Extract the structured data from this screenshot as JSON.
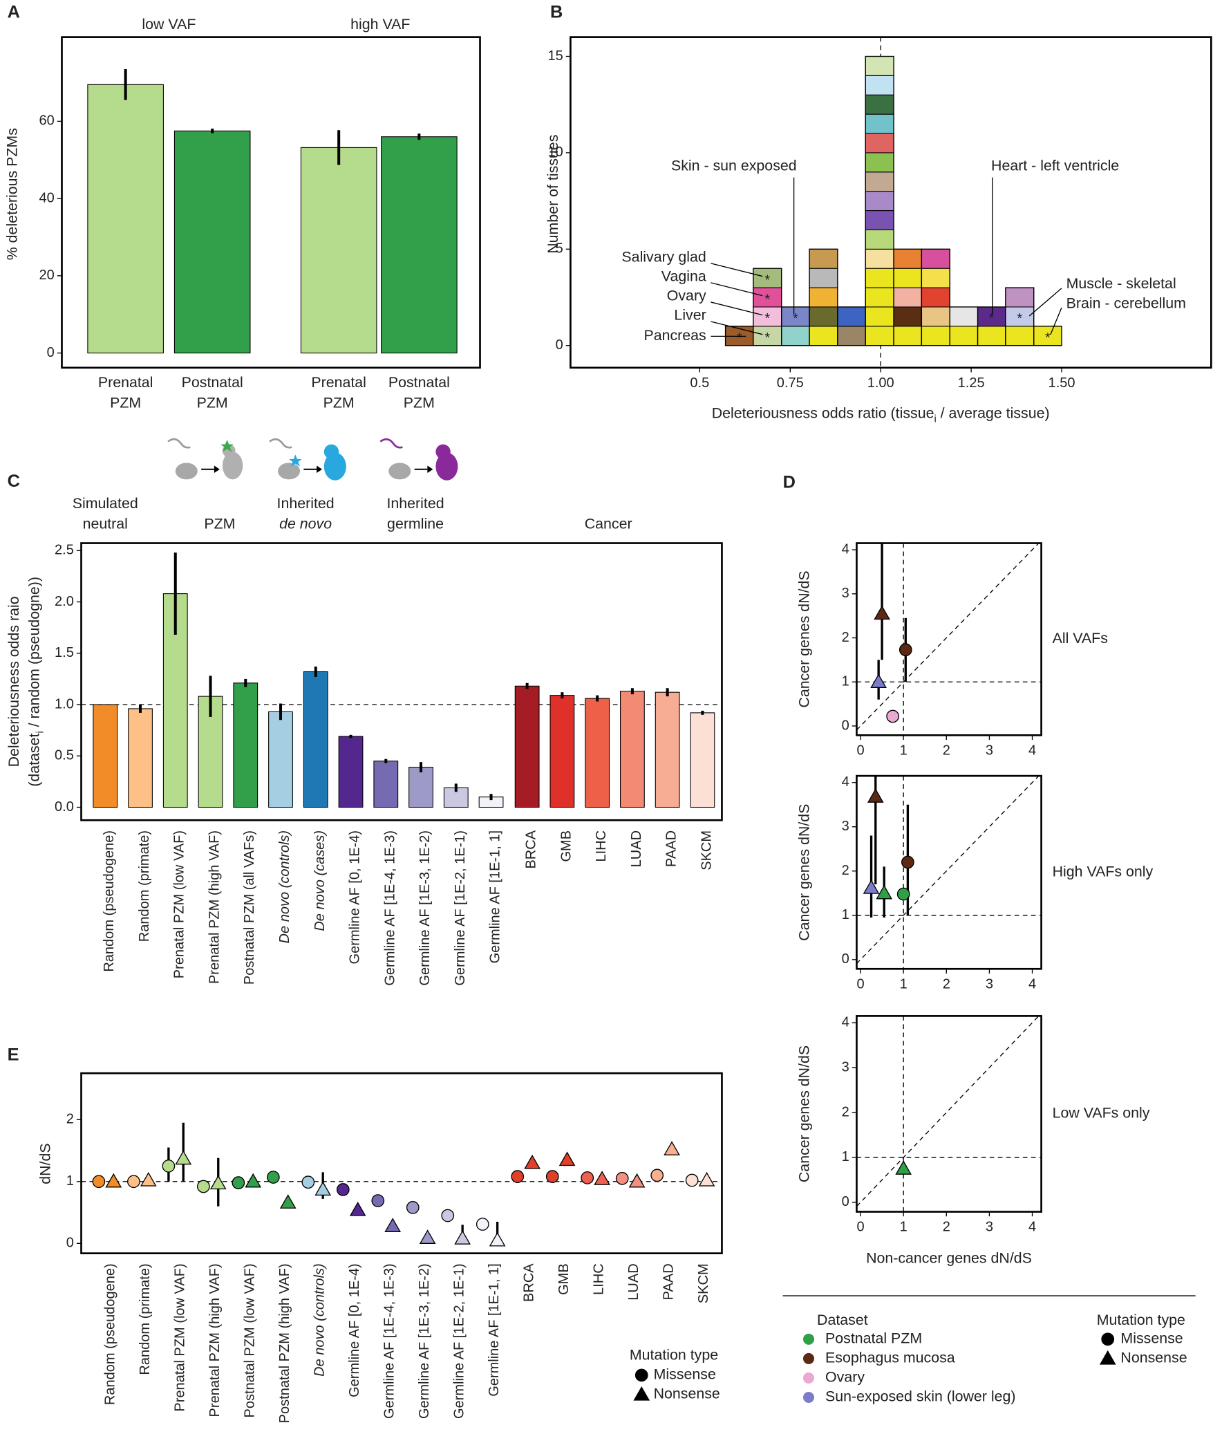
{
  "panel_labels": [
    "A",
    "B",
    "C",
    "D",
    "E"
  ],
  "chart_data": [
    {
      "type": "bar",
      "y_label": "% deleterious PZMs",
      "groups": [
        "low VAF",
        "high VAF"
      ],
      "categories": [
        [
          "Prenatal",
          "PZM"
        ],
        [
          "Postnatal",
          "PZM"
        ],
        [
          "Prenatal",
          "PZM"
        ],
        [
          "Postnatal",
          "PZM"
        ]
      ],
      "values": [
        69.5,
        57.5,
        53.2,
        56
      ],
      "errors": [
        4,
        0.6,
        4.5,
        0.8
      ],
      "colors": [
        "#b5dc8c",
        "#32a04a",
        "#b5dc8c",
        "#32a04a"
      ],
      "ylim": [
        -3.8,
        81.8
      ],
      "yticks": [
        0,
        20,
        40,
        60
      ]
    },
    {
      "type": "histogram",
      "y_label": "Number of tissues",
      "x_label": [
        "Deleteriousness odds ratio (tissue",
        "i",
        " / average tissue)"
      ],
      "bins": [
        0.571,
        0.648,
        0.726,
        0.803,
        0.881,
        0.958,
        1.036,
        1.113,
        1.191,
        1.268,
        1.345,
        1.423,
        1.5
      ],
      "counts": [
        1,
        4,
        2,
        5,
        2,
        15,
        5,
        5,
        2,
        2,
        3,
        1
      ],
      "cells": [
        [
          {
            "color": "#9b5b2a",
            "star": true
          }
        ],
        [
          {
            "color": "#c6d6a4",
            "star": true
          },
          {
            "color": "#f2bedb",
            "star": true
          },
          {
            "color": "#e0519a",
            "star": true
          },
          {
            "color": "#a3bc7e",
            "star": true
          }
        ],
        [
          {
            "color": "#91d2cc"
          },
          {
            "color": "#7b86c9",
            "star": true
          }
        ],
        [
          {
            "color": "#ebe51f"
          },
          {
            "color": "#6a6a2e"
          },
          {
            "color": "#f0b232"
          },
          {
            "color": "#b9b9b9"
          },
          {
            "color": "#c79a52"
          }
        ],
        [
          {
            "color": "#9a8567"
          },
          {
            "color": "#3d63c3"
          }
        ],
        [
          {
            "color": "#ebe51f"
          },
          {
            "color": "#ebe51f"
          },
          {
            "color": "#ebe51f"
          },
          {
            "color": "#ebe51f"
          },
          {
            "color": "#f7dfa0"
          },
          {
            "color": "#b7d97a"
          },
          {
            "color": "#7a52b2"
          },
          {
            "color": "#a98ac8"
          },
          {
            "color": "#c2aa92"
          },
          {
            "color": "#8ac14f"
          },
          {
            "color": "#e06462"
          },
          {
            "color": "#72c2ca"
          },
          {
            "color": "#3b7142"
          },
          {
            "color": "#c2e2f2"
          },
          {
            "color": "#d2e5b2"
          }
        ],
        [
          {
            "color": "#ebe51f"
          },
          {
            "color": "#5a2e12"
          },
          {
            "color": "#f2b2a2"
          },
          {
            "color": "#ebe51f"
          },
          {
            "color": "#e88232"
          }
        ],
        [
          {
            "color": "#ebe51f"
          },
          {
            "color": "#e9c585"
          },
          {
            "color": "#e2432f"
          },
          {
            "color": "#f3e04a"
          },
          {
            "color": "#d6509e"
          }
        ],
        [
          {
            "color": "#ebe51f"
          },
          {
            "color": "#e6e6e6"
          }
        ],
        [
          {
            "color": "#ebe51f"
          },
          {
            "color": "#5b2a8a",
            "star": true
          }
        ],
        [
          {
            "color": "#ebe51f"
          },
          {
            "color": "#c3cbe9",
            "star": true
          },
          {
            "color": "#c092c2"
          }
        ],
        [
          {
            "color": "#ebe51f",
            "star": true
          }
        ]
      ],
      "star_label": "*",
      "annotations": [
        "Skin - sun exposed",
        "Heart - left ventricle",
        "Salivary glad",
        "Vagina",
        "Ovary",
        "Liver",
        "Pancreas",
        "Muscle - skeletal",
        "Brain - cerebellum"
      ],
      "vline": 1,
      "xlim": [
        0.143,
        1.913
      ],
      "ylim": [
        -1.15,
        16.0
      ],
      "xticks": [
        0.5,
        0.75,
        {
          "value": 1,
          "label": "1.00"
        },
        1.25,
        {
          "value": 1.5,
          "label": "1.50"
        }
      ],
      "yticks": [
        0,
        5,
        10,
        15
      ]
    },
    {
      "type": "bar",
      "y_label": [
        "Deleteriousness odds raio",
        [
          "(dataset",
          "i",
          " / random (pseudogne))"
        ]
      ],
      "groups": [
        [
          "Simulated",
          "neutral"
        ],
        "PZM",
        [
          "Inherited",
          "de novo"
        ],
        [
          "Inherited",
          "germline"
        ],
        "Cancer"
      ],
      "categories": [
        "Random (pseudogene)",
        "Random (primate)",
        "Prenatal PZM (low VAF)",
        "Prenatal PZM (high VAF)",
        "Postnatal PZM (all VAFs)",
        "De novo (controls)",
        "De novo (cases)",
        "Germline AF [0, 1E-4)",
        "Germline AF [1E-4, 1E-3)",
        "Germline AF [1E-3, 1E-2)",
        "Germline AF [1E-2, 1E-1)",
        "Germline AF [1E-1, 1]",
        "BRCA",
        "GMB",
        "LIHC",
        "LUAD",
        "PAAD",
        "SKCM"
      ],
      "italic": [
        5,
        6
      ],
      "values": [
        1.0,
        0.96,
        2.08,
        1.08,
        1.21,
        0.93,
        1.32,
        0.69,
        0.45,
        0.39,
        0.19,
        0.1,
        1.18,
        1.09,
        1.06,
        1.13,
        1.12,
        0.92
      ],
      "errors": [
        0,
        0.04,
        0.4,
        0.2,
        0.04,
        0.08,
        0.05,
        0.015,
        0.02,
        0.05,
        0.04,
        0.03,
        0.03,
        0.03,
        0.03,
        0.03,
        0.04,
        0.02
      ],
      "colors": [
        "#f28c28",
        "#fdc086",
        "#b5dc8c",
        "#b5dc8c",
        "#32a04a",
        "#a6cee3",
        "#1f78b4",
        "#54278f",
        "#756bb1",
        "#9e9ac8",
        "#cbc9e2",
        "#f4f2f8",
        "#a61c24",
        "#e0302a",
        "#ef6048",
        "#f28a74",
        "#f7ac94",
        "#fde0d5"
      ],
      "hline": 1,
      "ylim": [
        -0.126,
        2.572
      ],
      "yticks": [
        {
          "value": 0,
          "label": "0.0"
        },
        0.5,
        {
          "value": 1,
          "label": "1.0"
        },
        1.5,
        {
          "value": 2,
          "label": "2.0"
        },
        2.5
      ]
    },
    {
      "type": "scatter",
      "label": "All VAFs",
      "y_label": "Cancer genes dN/dS",
      "x": [
        0.5,
        1.05,
        0.42,
        0.75
      ],
      "y": [
        2.55,
        1.73,
        1.0,
        0.22
      ],
      "y_low": [
        1.5,
        1.0,
        0.6,
        null
      ],
      "y_high": [
        4.15,
        2.45,
        1.5,
        null
      ],
      "dataset": [
        1,
        1,
        3,
        2
      ],
      "mutation": [
        1,
        0,
        1,
        0
      ],
      "diagonal": true,
      "vline": 1,
      "hline": 1,
      "xlim": [
        -0.09,
        4.21
      ],
      "ylim": [
        -0.21,
        4.15
      ],
      "xticks": [
        0,
        1,
        2,
        3,
        4
      ],
      "yticks": [
        0,
        1,
        2,
        3,
        4
      ]
    },
    {
      "type": "scatter",
      "label": "High VAFs only",
      "y_label": "Cancer genes dN/dS",
      "x": [
        0.35,
        1.1,
        0.25,
        0.55,
        1.0
      ],
      "y": [
        3.68,
        2.2,
        1.62,
        1.5,
        1.48
      ],
      "y_low": [
        1.7,
        1.0,
        0.95,
        0.95,
        null
      ],
      "y_high": [
        4.15,
        3.5,
        2.8,
        2.1,
        null
      ],
      "dataset": [
        1,
        1,
        3,
        0,
        0
      ],
      "mutation": [
        1,
        0,
        1,
        1,
        0
      ],
      "diagonal": true,
      "vline": 1,
      "hline": 1,
      "xlim": [
        -0.09,
        4.21
      ],
      "ylim": [
        -0.21,
        4.15
      ],
      "xticks": [
        0,
        1,
        2,
        3,
        4
      ],
      "yticks": [
        0,
        1,
        2,
        3,
        4
      ]
    },
    {
      "type": "scatter",
      "label": "Low VAFs only",
      "y_label": "Cancer genes dN/dS",
      "x_label": "Non-cancer genes dN/dS",
      "x": [
        1.0
      ],
      "y": [
        0.75
      ],
      "y_low": [
        null
      ],
      "y_high": [
        null
      ],
      "dataset": [
        0
      ],
      "mutation": [
        1
      ],
      "diagonal": true,
      "vline": 1,
      "hline": 1,
      "xlim": [
        -0.09,
        4.21
      ],
      "ylim": [
        -0.21,
        4.15
      ],
      "xticks": [
        0,
        1,
        2,
        3,
        4
      ],
      "yticks": [
        0,
        1,
        2,
        3,
        4
      ]
    },
    {
      "type": "dot",
      "y_label": "dN/dS",
      "legend_title": "Mutation type",
      "categories": [
        "Random (pseudogene)",
        "Random (primate)",
        "Prenatal PZM (low VAF)",
        "Prenatal PZM (high VAF)",
        "Postnatal PZM (low VAF)",
        "Postnatal PZM (high VAF)",
        "De novo (controls)",
        "Germline AF [0, 1E-4)",
        "Germline AF [1E-4, 1E-3)",
        "Germline AF [1E-3, 1E-2)",
        "Germline AF [1E-2, 1E-1)",
        "Germline AF [1E-1, 1]",
        "BRCA",
        "GMB",
        "LIHC",
        "LUAD",
        "PAAD",
        "SKCM"
      ],
      "italic": [
        6
      ],
      "colors": [
        "#f28c28",
        "#fdc086",
        "#b5dc8c",
        "#b5dc8c",
        "#32a04a",
        "#32a04a",
        "#a6cee3",
        "#54278f",
        "#756bb1",
        "#9e9ac8",
        "#cbc9e2",
        "#f4f2f8",
        "#e0402a",
        "#e0402a",
        "#f06050",
        "#f49080",
        "#f8b090",
        "#fde0d5"
      ],
      "series": [
        {
          "name": "Missense",
          "shape": "circle",
          "values": [
            1.0,
            1.0,
            1.25,
            0.92,
            0.98,
            1.07,
            0.99,
            0.87,
            0.69,
            0.58,
            0.45,
            0.31,
            1.08,
            1.08,
            1.06,
            1.05,
            1.1,
            1.02
          ],
          "low": [
            null,
            null,
            1.0,
            0.85,
            null,
            null,
            0.92,
            null,
            null,
            null,
            null,
            null,
            null,
            null,
            null,
            null,
            null,
            null
          ],
          "high": [
            null,
            null,
            1.55,
            1.0,
            null,
            null,
            1.05,
            null,
            null,
            null,
            null,
            null,
            null,
            null,
            null,
            null,
            null,
            null
          ]
        },
        {
          "name": "Nonsense",
          "shape": "triangle",
          "values": [
            1.0,
            1.02,
            1.37,
            0.97,
            1.0,
            0.66,
            0.87,
            0.54,
            0.28,
            0.09,
            0.08,
            0.05,
            1.3,
            1.35,
            1.04,
            1.0,
            1.52,
            1.02
          ],
          "low": [
            null,
            null,
            1.0,
            0.6,
            null,
            null,
            0.72,
            null,
            null,
            null,
            0.0,
            0.0,
            null,
            null,
            null,
            null,
            null,
            null
          ],
          "high": [
            null,
            null,
            1.95,
            1.38,
            null,
            null,
            1.15,
            null,
            null,
            null,
            0.3,
            0.35,
            null,
            null,
            null,
            null,
            null,
            null
          ]
        }
      ],
      "hline": 1,
      "ylim": [
        -0.16,
        2.75
      ],
      "yticks": [
        0,
        1,
        2
      ]
    }
  ],
  "d_legend": {
    "title": "Dataset",
    "datasets": [
      {
        "name": "Postnatal PZM",
        "color": "#2fa048"
      },
      {
        "name": "Esophagus mucosa",
        "color": "#5c2a14"
      },
      {
        "name": "Ovary",
        "color": "#eaa8d2"
      },
      {
        "name": "Sun-exposed skin (lower leg)",
        "color": "#7c7cc8"
      }
    ],
    "shape_title": "Mutation type",
    "shapes": [
      "Missense",
      "Nonsense"
    ]
  }
}
